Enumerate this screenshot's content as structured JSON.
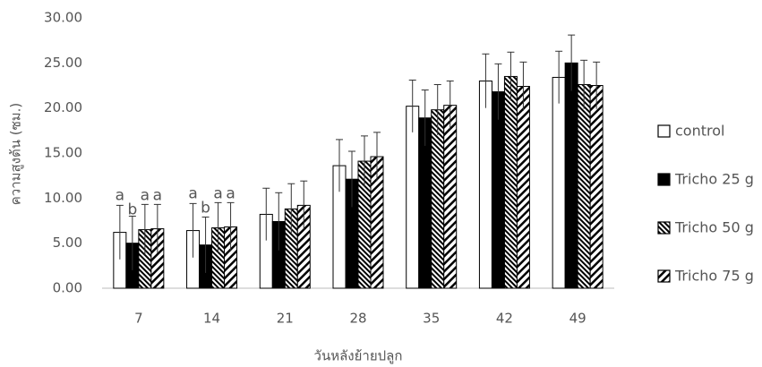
{
  "chart_data": {
    "type": "bar",
    "x_label": "วันหลังย้ายปลูก",
    "y_label": "ความสูงต้น (ซม.)",
    "categories": [
      "7",
      "14",
      "21",
      "28",
      "35",
      "42",
      "49"
    ],
    "series": [
      {
        "name": "control",
        "color": "#ffffff",
        "pattern": "none",
        "values": [
          6.2,
          6.4,
          8.2,
          13.6,
          20.2,
          23.0,
          23.4
        ],
        "errors": [
          3.0,
          3.0,
          2.9,
          2.9,
          2.9,
          3.0,
          2.9
        ]
      },
      {
        "name": "Tricho 25 g",
        "color": "#000000",
        "pattern": "solid",
        "values": [
          5.0,
          4.8,
          7.4,
          12.1,
          18.9,
          21.8,
          25.0
        ],
        "errors": [
          3.0,
          3.1,
          3.2,
          3.1,
          3.1,
          3.1,
          3.1
        ]
      },
      {
        "name": "Tricho 50 g",
        "color": "#000000",
        "pattern": "back-diagonal",
        "values": [
          6.5,
          6.7,
          8.8,
          14.1,
          19.8,
          23.5,
          22.6
        ],
        "errors": [
          2.8,
          2.8,
          2.8,
          2.8,
          2.8,
          2.7,
          2.7
        ]
      },
      {
        "name": "Tricho 75 g",
        "color": "#000000",
        "pattern": "diagonal",
        "values": [
          6.6,
          6.8,
          9.2,
          14.6,
          20.3,
          22.4,
          22.5
        ],
        "errors": [
          2.7,
          2.7,
          2.7,
          2.7,
          2.7,
          2.7,
          2.6
        ]
      }
    ],
    "annotations": [
      {
        "category": "7",
        "labels": [
          "a",
          "b",
          "a",
          "a"
        ]
      },
      {
        "category": "14",
        "labels": [
          "a",
          "b",
          "a",
          "a"
        ]
      }
    ],
    "ylim": [
      0,
      30
    ],
    "yticks": [
      {
        "value": 0,
        "label": "0.00"
      },
      {
        "value": 5,
        "label": "5.00"
      },
      {
        "value": 10,
        "label": "10.00"
      },
      {
        "value": 15,
        "label": "15.00"
      },
      {
        "value": 20,
        "label": "20.00"
      },
      {
        "value": 25,
        "label": "25.00"
      },
      {
        "value": 30,
        "label": "30.00"
      }
    ],
    "grid": false,
    "legend": "right"
  }
}
